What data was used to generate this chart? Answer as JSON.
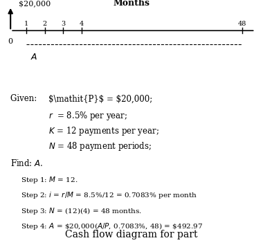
{
  "title_arrow_label": "$20,000",
  "axis_label": "Months",
  "tick_labels_left": [
    "1",
    "2",
    "3",
    "4"
  ],
  "tick_label_right": "48",
  "tick_label_zero": "0",
  "given_items": [
    [
      "P",
      " = $20,000;"
    ],
    [
      "r",
      "  = 8.5% per year;"
    ],
    [
      "K",
      " = 12 payments per year;"
    ],
    [
      "N",
      " = 48 payment periods;"
    ]
  ],
  "step_texts": [
    "Step 1: M = 12.",
    "Step 2: i = r/M = 8.5%/12 = 0.7083% per month",
    "Step 3: N = (12)(4) = 48 months.",
    "Step 4: A = $20,000(A/P, 0.7083%, 48) = $492.97"
  ],
  "footer": "Cash flow diagram for part",
  "bg_color": "#ffffff",
  "text_color": "#000000"
}
